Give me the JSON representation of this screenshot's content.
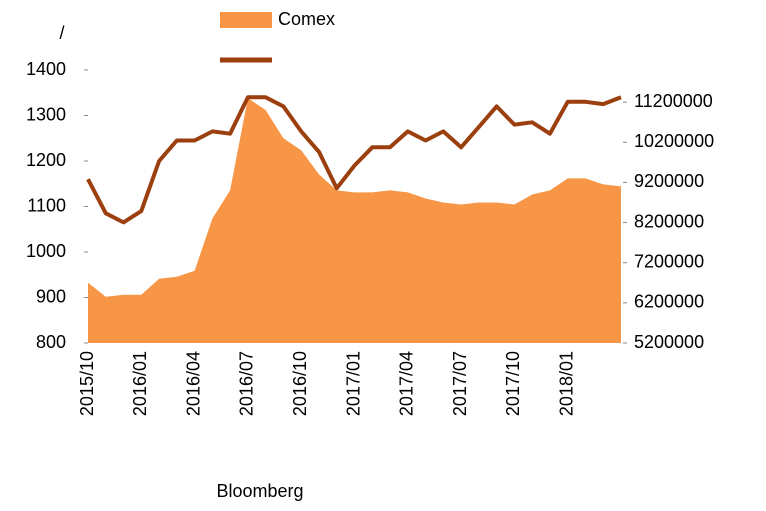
{
  "chart_data": {
    "type": "area-line",
    "left_label": "/",
    "source": "Bloomberg",
    "legend": "top",
    "x": [
      "2015/10",
      "2015/11",
      "2015/12",
      "2016/01",
      "2016/02",
      "2016/03",
      "2016/04",
      "2016/05",
      "2016/06",
      "2016/07",
      "2016/08",
      "2016/09",
      "2016/10",
      "2016/11",
      "2016/12",
      "2017/01",
      "2017/02",
      "2017/03",
      "2017/04",
      "2017/05",
      "2017/06",
      "2017/07",
      "2017/08",
      "2017/09",
      "2017/10",
      "2017/11",
      "2017/12",
      "2018/01",
      "2018/02",
      "2018/03",
      "2018/04"
    ],
    "xticks": [
      "2015/10",
      "2016/01",
      "2016/04",
      "2016/07",
      "2016/10",
      "2017/01",
      "2017/04",
      "2017/07",
      "2017/10",
      "2018/01"
    ],
    "ylim": [
      800,
      1400
    ],
    "yticks": [
      800,
      900,
      1000,
      1100,
      1200,
      1300,
      1400
    ],
    "y2lim": [
      5200000,
      12000000
    ],
    "y2ticks": [
      5200000,
      6200000,
      7200000,
      8200000,
      9200000,
      10200000,
      11200000
    ],
    "series": [
      {
        "name": "Comex",
        "color": "#f79646",
        "kind": "area",
        "axis": "y2",
        "values": [
          6700000,
          6350000,
          6400000,
          6400000,
          6800000,
          6850000,
          7000000,
          8300000,
          9000000,
          11300000,
          11000000,
          10300000,
          10000000,
          9400000,
          9000000,
          8950000,
          8950000,
          9000000,
          8950000,
          8800000,
          8700000,
          8650000,
          8700000,
          8700000,
          8650000,
          8900000,
          9000000,
          9300000,
          9300000,
          9150000,
          9100000
        ]
      },
      {
        "color": "#9c3f0e",
        "kind": "line",
        "values": [
          1160,
          1085,
          1065,
          1090,
          1200,
          1245,
          1245,
          1265,
          1260,
          1340,
          1340,
          1320,
          1265,
          1220,
          1140,
          1190,
          1230,
          1230,
          1265,
          1245,
          1265,
          1230,
          1275,
          1320,
          1280,
          1285,
          1260,
          1330,
          1330,
          1325,
          1340
        ]
      }
    ]
  }
}
